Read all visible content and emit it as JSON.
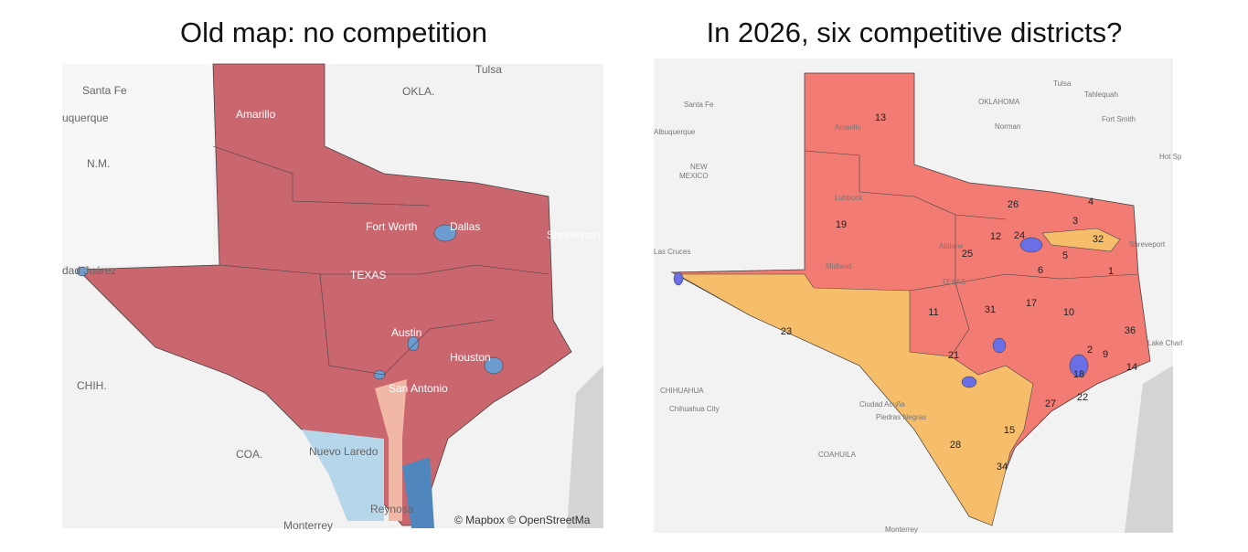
{
  "left": {
    "title": "Old map: no competition",
    "labels": [
      "Tulsa",
      "Santa Fe",
      "OKLA.",
      "uquerque",
      "Amarillo",
      "N.M.",
      "Fort Worth",
      "Dallas",
      "Shreveport",
      "dad Juárez",
      "TEXAS",
      "Austin",
      "Houston",
      "CHIH.",
      "San Antonio",
      "COA.",
      "Nuevo Laredo",
      "Reynosa",
      "Monterrey"
    ],
    "attribution": "© Mapbox © OpenStreetMa"
  },
  "right": {
    "title": "In 2026, six competitive districts?",
    "labels": [
      "Tulsa",
      "Tahlequah",
      "Santa Fe",
      "OKLAHOMA",
      "Norman",
      "Fort Smith",
      "Albuquerque",
      "NEW",
      "MEXICO",
      "Hot Sp",
      "Amarillo",
      "Lubbock",
      "Abilene",
      "Shreveport",
      "Las Cruces",
      "Midland",
      "TEXAS",
      "CHIHUAHUA",
      "Chihuahua City",
      "Ciudad Acuña",
      "Piedras Negras",
      "COAHUILA",
      "Monterrey",
      "Lake Charl"
    ],
    "districts": [
      "13",
      "19",
      "26",
      "4",
      "3",
      "12",
      "24",
      "32",
      "25",
      "5",
      "6",
      "1",
      "23",
      "11",
      "31",
      "17",
      "10",
      "36",
      "21",
      "2",
      "9",
      "18",
      "14",
      "27",
      "22",
      "15",
      "28",
      "34"
    ]
  }
}
